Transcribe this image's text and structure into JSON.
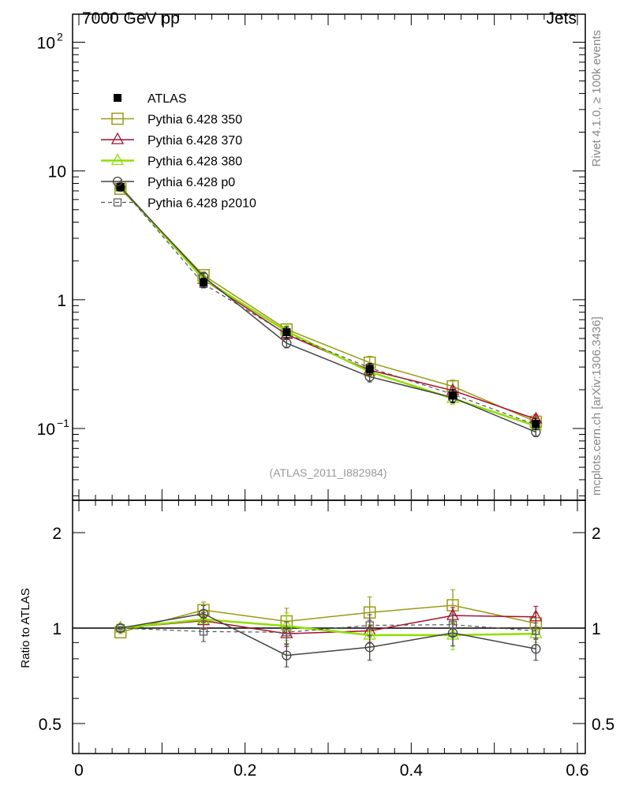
{
  "header": {
    "left": "7000 GeV pp",
    "right": "Jets"
  },
  "side_labels": {
    "rivet": "Rivet 4.1.0, ≥ 100k events",
    "mcplots": "mcplots.cern.ch [arXiv:1306.3436]"
  },
  "chart_data": {
    "type": "line",
    "analysis_label": "(ATLAS_2011_I882984)",
    "x": [
      0.05,
      0.15,
      0.25,
      0.35,
      0.45,
      0.55
    ],
    "xlim": [
      -0.0076,
      0.6095
    ],
    "xticks": [
      {
        "v": 0,
        "label": "0"
      },
      {
        "v": 0.2,
        "label": "0.2"
      },
      {
        "v": 0.4,
        "label": "0.4"
      },
      {
        "v": 0.6,
        "label": "0.6"
      }
    ],
    "main": {
      "yscale": "log",
      "ylim": [
        0.0277,
        165
      ],
      "yticks": [
        {
          "v": 100,
          "label": "10",
          "sup": "2"
        },
        {
          "v": 10,
          "label": "10",
          "sup": ""
        },
        {
          "v": 1,
          "label": "1",
          "sup": ""
        },
        {
          "v": 0.1,
          "label": "10",
          "sup": "−1"
        }
      ]
    },
    "ratio": {
      "ylabel": "Ratio to ATLAS",
      "yscale": "log",
      "ylim": [
        0.402,
        2.53
      ],
      "yticks": [
        {
          "v": 2,
          "label": "2"
        },
        {
          "v": 1,
          "label": "1"
        },
        {
          "v": 0.5,
          "label": "0.5"
        }
      ]
    },
    "data": {
      "name": "ATLAS",
      "values": [
        7.5,
        1.36,
        0.56,
        0.29,
        0.18,
        0.109
      ],
      "rel_err": [
        0.02,
        0.08,
        0.1,
        0.1,
        0.12,
        0.1
      ]
    },
    "series": [
      {
        "name": "Pythia 6.428 350",
        "color": "#9a9a14",
        "marker": "square",
        "dash": false,
        "width": 1.5,
        "ratio": [
          0.97,
          1.14,
          1.05,
          1.12,
          1.18,
          1.035
        ],
        "rel_err": [
          0.01,
          0.06,
          0.1,
          0.12,
          0.12,
          0.08
        ]
      },
      {
        "name": "Pythia 6.428 370",
        "color": "#aa0e2c",
        "marker": "triangle",
        "dash": false,
        "width": 1.5,
        "ratio": [
          1.0,
          1.055,
          0.96,
          0.98,
          1.095,
          1.085
        ],
        "rel_err": [
          0.01,
          0.06,
          0.09,
          0.08,
          0.06,
          0.08
        ]
      },
      {
        "name": "Pythia 6.428 380",
        "color": "#8ee000",
        "marker": "triangle",
        "dash": false,
        "width": 2.5,
        "ratio": [
          1.0,
          1.065,
          1.015,
          0.95,
          0.95,
          0.96
        ],
        "rel_err": [
          0.01,
          0.06,
          0.1,
          0.08,
          0.1,
          0.06
        ]
      },
      {
        "name": "Pythia 6.428 p0",
        "color": "#444444",
        "marker": "circle",
        "dash": false,
        "width": 1.5,
        "ratio": [
          1.0,
          1.11,
          0.82,
          0.87,
          0.965,
          0.86
        ],
        "rel_err": [
          0.01,
          0.06,
          0.08,
          0.09,
          0.09,
          0.08
        ]
      },
      {
        "name": "Pythia 6.428 p2010",
        "color": "#555555",
        "marker": "square-small",
        "dash": true,
        "width": 1.2,
        "ratio": [
          1.0,
          0.975,
          0.97,
          1.02,
          1.025,
          0.98
        ],
        "rel_err": [
          0.01,
          0.07,
          0.08,
          0.08,
          0.08,
          0.06
        ]
      }
    ]
  }
}
